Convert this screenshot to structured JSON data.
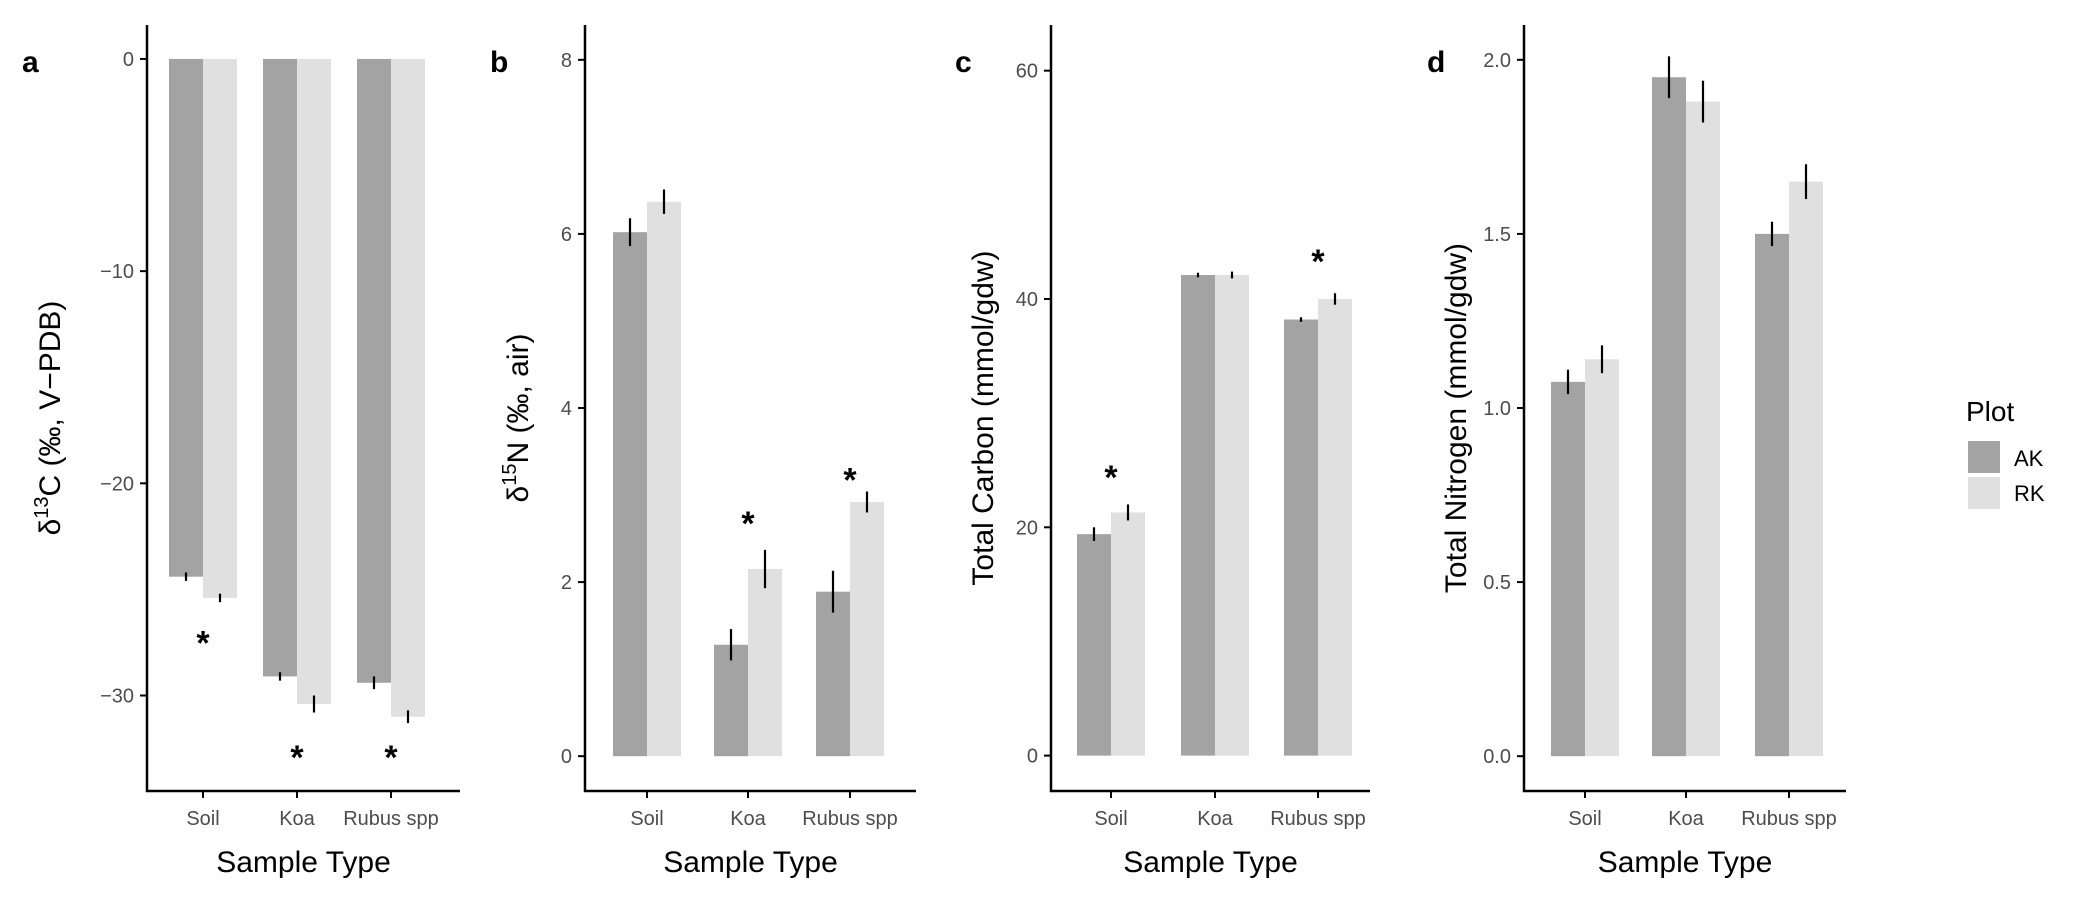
{
  "colors": {
    "AK": "#a3a3a3",
    "RK": "#e0e0e0",
    "axis": "#000000",
    "error_bar": "#000000"
  },
  "legend": {
    "title": "Plot",
    "entries": [
      "AK",
      "RK"
    ],
    "placement": "right"
  },
  "chart_data": [
    {
      "type": "bar",
      "panel": "a",
      "categories": [
        "Soil",
        "Koa",
        "Rubus spp"
      ],
      "series": [
        {
          "name": "AK",
          "values": [
            -24.4,
            -29.1,
            -29.4
          ],
          "errors": [
            0.2,
            0.2,
            0.3
          ]
        },
        {
          "name": "RK",
          "values": [
            -25.4,
            -30.4,
            -31.0
          ],
          "errors": [
            0.2,
            0.4,
            0.3
          ]
        }
      ],
      "significance": [
        "*",
        "*",
        "*"
      ],
      "sig_values": [
        -27.4,
        -32.8,
        -32.8
      ],
      "xlabel": "Sample Type",
      "ylabel": {
        "pre": "δ",
        "sup": "13",
        "post": "C (‰, V−PDB)"
      },
      "ylim": [
        -34.5,
        1.6
      ],
      "yticks": [
        0,
        -10,
        -20,
        -30
      ],
      "ytick_labels": [
        "0",
        "−10",
        "−20",
        "−30"
      ],
      "grid": false
    },
    {
      "type": "bar",
      "panel": "b",
      "categories": [
        "Soil",
        "Koa",
        "Rubus spp"
      ],
      "series": [
        {
          "name": "AK",
          "values": [
            6.02,
            1.28,
            1.89
          ],
          "errors": [
            0.16,
            0.18,
            0.24
          ]
        },
        {
          "name": "RK",
          "values": [
            6.37,
            2.15,
            2.92
          ],
          "errors": [
            0.14,
            0.22,
            0.12
          ]
        }
      ],
      "significance": [
        "",
        "*",
        "*"
      ],
      "sig_values": [
        null,
        2.7,
        3.2
      ],
      "xlabel": "Sample Type",
      "ylabel": {
        "pre": "δ",
        "sup": "15",
        "post": "N (‰, air)"
      },
      "ylim": [
        -0.4,
        8.4
      ],
      "yticks": [
        0,
        2,
        4,
        6,
        8
      ],
      "ytick_labels": [
        "0",
        "2",
        "4",
        "6",
        "8"
      ],
      "grid": false
    },
    {
      "type": "bar",
      "panel": "c",
      "categories": [
        "Soil",
        "Koa",
        "Rubus spp"
      ],
      "series": [
        {
          "name": "AK",
          "values": [
            19.4,
            42.1,
            38.2
          ],
          "errors": [
            0.6,
            0.2,
            0.2
          ]
        },
        {
          "name": "RK",
          "values": [
            21.3,
            42.1,
            40.0
          ],
          "errors": [
            0.7,
            0.3,
            0.5
          ]
        }
      ],
      "significance": [
        "*",
        "",
        "*"
      ],
      "sig_values": [
        24.6,
        null,
        43.5
      ],
      "xlabel": "Sample Type",
      "ylabel": {
        "pre": "Total Carbon (mmol/gdw)",
        "sup": "",
        "post": ""
      },
      "ylim": [
        -3.1,
        64.0
      ],
      "yticks": [
        0,
        20,
        40,
        60
      ],
      "ytick_labels": [
        "0",
        "20",
        "40",
        "60"
      ],
      "grid": false
    },
    {
      "type": "bar",
      "panel": "d",
      "categories": [
        "Soil",
        "Koa",
        "Rubus spp"
      ],
      "series": [
        {
          "name": "AK",
          "values": [
            1.075,
            1.95,
            1.5
          ],
          "errors": [
            0.035,
            0.06,
            0.035
          ]
        },
        {
          "name": "RK",
          "values": [
            1.14,
            1.88,
            1.65
          ],
          "errors": [
            0.04,
            0.06,
            0.05
          ]
        }
      ],
      "significance": [
        "",
        "",
        ""
      ],
      "sig_values": [
        null,
        null,
        null
      ],
      "xlabel": "Sample Type",
      "ylabel": {
        "pre": "Total Nitrogen (mmol/gdw)",
        "sup": "",
        "post": ""
      },
      "ylim": [
        -0.1,
        2.1
      ],
      "yticks": [
        0.0,
        0.5,
        1.0,
        1.5,
        2.0
      ],
      "ytick_labels": [
        "0.0",
        "0.5",
        "1.0",
        "1.5",
        "2.0"
      ],
      "grid": false
    }
  ]
}
